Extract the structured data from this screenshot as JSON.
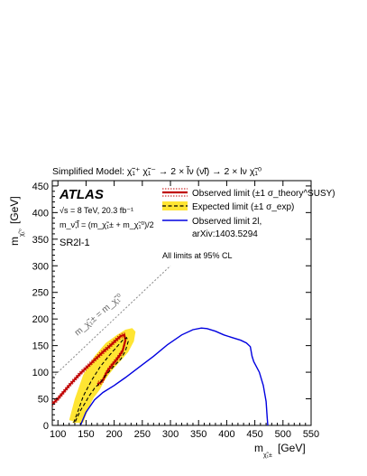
{
  "chart_data": {
    "type": "line",
    "title": "Simplified Model: χ̃₁⁺ χ̃₁⁻ → 2 × l̃ν (ν̃l) → 2 × lν χ̃₁⁰",
    "xlabel": "m",
    "xlabel_sub": "χ̃₁±",
    "xlabel_unit": "[GeV]",
    "ylabel": "m",
    "ylabel_sub": "χ̃₁⁰",
    "ylabel_unit": "[GeV]",
    "xlim": [
      90,
      550
    ],
    "ylim": [
      0,
      460
    ],
    "xticks": [
      100,
      150,
      200,
      250,
      300,
      350,
      400,
      450,
      500,
      550
    ],
    "yticks": [
      0,
      50,
      100,
      150,
      200,
      250,
      300,
      350,
      400,
      450
    ],
    "grid": false,
    "legend_placement": "top-right",
    "annotations": {
      "atlas": "ATLAS",
      "energy": "√s = 8 TeV, 20.3 fb⁻¹",
      "mass_relation": "m_ν̃,l̃ = (m_χ̃₁± + m_χ̃₁⁰)/2",
      "region": "SR2l-1",
      "cl_note": "All limits at 95% CL",
      "diagonal_label": "m_χ̃₁± = m_χ̃₁⁰"
    },
    "series": [
      {
        "name": "Observed limit (±1 σ_theory^SUSY)",
        "style": "observed",
        "color": "#c00000",
        "x": [
          90,
          100,
          120,
          140,
          160,
          180,
          195,
          205,
          212,
          218,
          220,
          215,
          205,
          195,
          188,
          183,
          180,
          175,
          170
        ],
        "y": [
          40,
          50,
          75,
          98,
          118,
          138,
          152,
          162,
          168,
          170,
          160,
          140,
          125,
          112,
          102,
          92,
          85,
          80,
          78
        ]
      },
      {
        "name": "Expected limit (±1 σ_exp)",
        "style": "expected",
        "color": "#000000",
        "band_color": "#ffe533",
        "x": [
          128,
          135,
          145,
          160,
          175,
          190,
          205,
          215,
          222,
          225,
          220,
          212,
          200,
          190,
          182,
          175,
          170,
          165,
          160,
          155,
          150,
          140,
          133,
          130
        ],
        "y": [
          5,
          25,
          55,
          85,
          110,
          130,
          148,
          160,
          165,
          158,
          140,
          125,
          112,
          100,
          90,
          80,
          75,
          70,
          62,
          55,
          45,
          28,
          12,
          5
        ],
        "band_upper_x": [
          120,
          130,
          145,
          165,
          185,
          205,
          220,
          232,
          238,
          235,
          225,
          212,
          200,
          190,
          180,
          170,
          160,
          150,
          145
        ],
        "band_upper_y": [
          10,
          50,
          95,
          130,
          155,
          170,
          180,
          183,
          176,
          158,
          138,
          122,
          108,
          95,
          80,
          65,
          45,
          20,
          5
        ],
        "band_lower_x": [
          138,
          150,
          160,
          168,
          175,
          183,
          195,
          205,
          210,
          200,
          188,
          175,
          163,
          152,
          142,
          135,
          128,
          125
        ],
        "band_lower_y": [
          5,
          30,
          48,
          58,
          68,
          85,
          105,
          125,
          135,
          130,
          118,
          98,
          78,
          60,
          40,
          22,
          8,
          5
        ]
      },
      {
        "name": "Observed limit 2l,",
        "name_line2": "arXiv:1403.5294",
        "style": "previous",
        "color": "#0000e0",
        "x": [
          140,
          150,
          165,
          180,
          200,
          220,
          245,
          270,
          295,
          320,
          340,
          355,
          365,
          380,
          395,
          410,
          425,
          435,
          442,
          445,
          448,
          458,
          465,
          470,
          472,
          473
        ],
        "y": [
          0,
          25,
          48,
          62,
          75,
          90,
          110,
          130,
          152,
          170,
          180,
          183,
          182,
          177,
          170,
          165,
          160,
          155,
          148,
          130,
          120,
          100,
          75,
          45,
          15,
          0
        ]
      }
    ]
  }
}
